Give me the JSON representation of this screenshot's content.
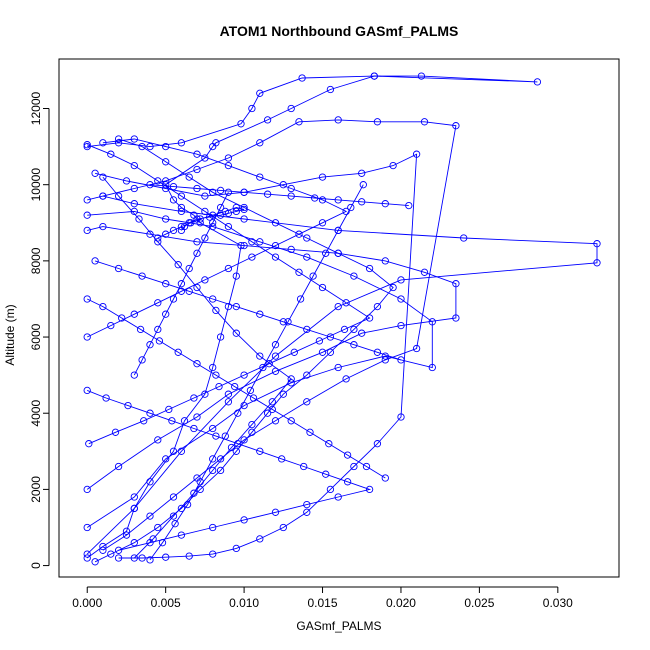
{
  "chart_data": {
    "type": "scatter",
    "title": "ATOM1 Northbound GASmf_PALMS",
    "xlabel": "GASmf_PALMS",
    "ylabel": "Altitude (m)",
    "xlim": [
      -0.0018,
      0.0339
    ],
    "ylim": [
      -300,
      13300
    ],
    "x_ticks": [
      "0.000",
      "0.005",
      "0.010",
      "0.015",
      "0.020",
      "0.025",
      "0.030"
    ],
    "y_ticks": [
      "0",
      "2000",
      "4000",
      "6000",
      "8000",
      "10000",
      "12000"
    ],
    "marker": "open-circle",
    "connected": true,
    "grid": false,
    "series_color": "#0000ff",
    "series": [
      {
        "x": [
          0.0,
          0.001,
          0.0025,
          0.003,
          0.004,
          0.0055,
          0.0062,
          0.0075,
          0.008,
          0.0085,
          0.009,
          0.0095,
          0.0098,
          0.0072,
          0.0068,
          0.006,
          0.0055,
          0.005,
          0.0075,
          0.008,
          0.0082,
          0.0115,
          0.013,
          0.0155,
          0.0183,
          0.0287,
          0.0213,
          0.0183,
          0.0137,
          0.011,
          0.0105,
          0.0098,
          0.006,
          0.004,
          0.002,
          0.0
        ],
        "y": [
          200,
          500,
          900,
          1500,
          2200,
          3000,
          3800,
          4500,
          5200,
          6000,
          6800,
          7600,
          8400,
          9000,
          9200,
          9400,
          9600,
          10000,
          10700,
          11000,
          11100,
          11700,
          12000,
          12500,
          12850,
          12700,
          12850,
          12850,
          12800,
          12400,
          12000,
          11600,
          11100,
          11000,
          11100,
          11000
        ]
      },
      {
        "x": [
          0.0,
          0.003,
          0.006,
          0.009,
          0.012,
          0.016,
          0.02,
          0.0325,
          0.0325,
          0.024,
          0.016,
          0.01,
          0.006,
          0.003,
          0.001,
          0.0
        ],
        "y": [
          300,
          1500,
          3000,
          4300,
          5500,
          6800,
          7500,
          7950,
          8450,
          8600,
          8800,
          9100,
          9300,
          9500,
          9700,
          9600
        ]
      },
      {
        "x": [
          0.0,
          0.003,
          0.005,
          0.008,
          0.01,
          0.013,
          0.016,
          0.019,
          0.022,
          0.022,
          0.02,
          0.017,
          0.014,
          0.011,
          0.008,
          0.005,
          0.003,
          0.0
        ],
        "y": [
          1000,
          1800,
          2800,
          3600,
          4200,
          4800,
          5200,
          5500,
          5200,
          6400,
          7000,
          7600,
          8100,
          8500,
          8900,
          9100,
          9300,
          9200
        ]
      },
      {
        "x": [
          0.0,
          0.002,
          0.0045,
          0.007,
          0.009,
          0.012,
          0.015,
          0.0175,
          0.02,
          0.0235,
          0.0235,
          0.0215,
          0.019,
          0.016,
          0.013,
          0.01,
          0.007,
          0.004,
          0.001,
          0.0
        ],
        "y": [
          2000,
          2600,
          3300,
          3900,
          4500,
          5100,
          5600,
          6100,
          6300,
          6500,
          7400,
          7700,
          8000,
          8200,
          8300,
          8400,
          8500,
          8700,
          8900,
          8800
        ]
      },
      {
        "x": [
          0.001,
          0.0025,
          0.004,
          0.0055,
          0.007,
          0.0085,
          0.01,
          0.012,
          0.014,
          0.0165,
          0.019,
          0.021,
          0.0235,
          0.0215,
          0.0185,
          0.016,
          0.0135,
          0.011,
          0.009,
          0.007,
          0.005,
          0.003,
          0.001
        ],
        "y": [
          400,
          800,
          1300,
          1800,
          2300,
          2800,
          3300,
          3800,
          4300,
          4900,
          5400,
          5700,
          11550,
          11650,
          11650,
          11700,
          11650,
          11100,
          10700,
          10400,
          10100,
          9900,
          9700
        ]
      },
      {
        "x": [
          0.002,
          0.0035,
          0.005,
          0.0065,
          0.008,
          0.0095,
          0.011,
          0.0125,
          0.014,
          0.0155,
          0.017,
          0.0185,
          0.02,
          0.021,
          0.0195,
          0.0175,
          0.015,
          0.0125,
          0.01,
          0.0075,
          0.005,
          0.0025,
          0.0005
        ],
        "y": [
          200,
          200,
          220,
          250,
          300,
          450,
          700,
          1000,
          1400,
          2000,
          2600,
          3200,
          3900,
          10800,
          10500,
          10300,
          10200,
          10000,
          9800,
          9700,
          9900,
          10100,
          10300
        ]
      },
      {
        "x": [
          0.0005,
          0.0015,
          0.003,
          0.0045,
          0.006,
          0.0072,
          0.0085,
          0.0095,
          0.0105,
          0.0115,
          0.0125,
          0.014,
          0.0155,
          0.017,
          0.0185,
          0.0195,
          0.018,
          0.016,
          0.014,
          0.012,
          0.01,
          0.008,
          0.0065,
          0.005,
          0.0035,
          0.002
        ],
        "y": [
          100,
          300,
          600,
          1000,
          1500,
          2000,
          2500,
          3000,
          3500,
          4000,
          4500,
          5000,
          5600,
          6200,
          6800,
          7300,
          7800,
          8200,
          8600,
          9000,
          9400,
          9800,
          10200,
          10600,
          11000,
          11200
        ]
      },
      {
        "x": [
          0.003,
          0.0042,
          0.0055,
          0.0068,
          0.008,
          0.0092,
          0.0105,
          0.0118,
          0.013,
          0.011,
          0.0095,
          0.0082,
          0.007,
          0.0058,
          0.0045,
          0.0033,
          0.002,
          0.001
        ],
        "y": [
          200,
          700,
          1300,
          1900,
          2500,
          3100,
          3700,
          4300,
          4900,
          5500,
          6100,
          6700,
          7300,
          7900,
          8500,
          9100,
          9700,
          10200
        ]
      },
      {
        "x": [
          0.004,
          0.0048,
          0.0056,
          0.0064,
          0.0072,
          0.008,
          0.0088,
          0.0096,
          0.0104,
          0.0112,
          0.012,
          0.0128,
          0.0136,
          0.0144,
          0.0152,
          0.016,
          0.0168,
          0.0176
        ],
        "y": [
          150,
          600,
          1100,
          1600,
          2200,
          2800,
          3400,
          4000,
          4600,
          5200,
          5800,
          6400,
          7000,
          7600,
          8200,
          8800,
          9400,
          10000
        ]
      },
      {
        "x": [
          0.006,
          0.0062,
          0.0065,
          0.007,
          0.0078,
          0.0085,
          0.009,
          0.0095,
          0.01,
          0.0095,
          0.0088,
          0.008,
          0.0072,
          0.0066,
          0.006,
          0.0055,
          0.005,
          0.0045
        ],
        "y": [
          8800,
          8900,
          9000,
          9100,
          9150,
          9200,
          9250,
          9300,
          9350,
          9400,
          9300,
          9200,
          9100,
          9000,
          8900,
          8800,
          8700,
          8600
        ]
      },
      {
        "x": [
          0.0001,
          0.0018,
          0.0036,
          0.0052,
          0.0068,
          0.0084,
          0.01,
          0.0116,
          0.0132,
          0.0148,
          0.0164,
          0.018,
          0.0165,
          0.015,
          0.0135,
          0.012,
          0.0105,
          0.009,
          0.0075,
          0.006,
          0.0045,
          0.003,
          0.0015,
          0.0
        ],
        "y": [
          3200,
          3500,
          3800,
          4100,
          4400,
          4700,
          5000,
          5300,
          5600,
          5900,
          6200,
          6500,
          6900,
          7300,
          7700,
          8100,
          8500,
          8900,
          9300,
          9700,
          10100,
          10500,
          10800,
          11050
        ]
      },
      {
        "x": [
          0.0,
          0.0012,
          0.0026,
          0.004,
          0.0054,
          0.0068,
          0.0082,
          0.0096,
          0.011,
          0.0124,
          0.0138,
          0.0152,
          0.0166,
          0.018,
          0.016,
          0.014,
          0.012,
          0.01,
          0.008,
          0.006,
          0.004,
          0.002
        ],
        "y": [
          4600,
          4400,
          4200,
          4000,
          3800,
          3600,
          3400,
          3200,
          3000,
          2800,
          2600,
          2400,
          2200,
          2000,
          1800,
          1600,
          1400,
          1200,
          1000,
          800,
          600,
          400
        ]
      },
      {
        "x": [
          0.0,
          0.0015,
          0.003,
          0.0045,
          0.006,
          0.0075,
          0.009,
          0.0105,
          0.012,
          0.0135,
          0.015,
          0.0165,
          0.015,
          0.013,
          0.011,
          0.009,
          0.007,
          0.005,
          0.003,
          0.001
        ],
        "y": [
          6000,
          6300,
          6600,
          6900,
          7200,
          7500,
          7800,
          8100,
          8400,
          8700,
          9000,
          9300,
          9600,
          9900,
          10200,
          10500,
          10800,
          11000,
          11200,
          11100
        ]
      },
      {
        "x": [
          0.0,
          0.001,
          0.0022,
          0.0034,
          0.0046,
          0.0058,
          0.007,
          0.0082,
          0.0094,
          0.0106,
          0.0118,
          0.013,
          0.0142,
          0.0154,
          0.0166,
          0.0178,
          0.019
        ],
        "y": [
          7000,
          6800,
          6500,
          6200,
          5900,
          5600,
          5300,
          5000,
          4700,
          4400,
          4100,
          3800,
          3500,
          3200,
          2900,
          2600,
          2300
        ]
      },
      {
        "x": [
          0.003,
          0.0035,
          0.004,
          0.0045,
          0.005,
          0.0055,
          0.006,
          0.0065,
          0.007,
          0.0075,
          0.008,
          0.0085,
          0.009
        ],
        "y": [
          5000,
          5400,
          5800,
          6200,
          6600,
          7000,
          7400,
          7800,
          8200,
          8600,
          9000,
          9400,
          9800
        ]
      },
      {
        "x": [
          0.0005,
          0.002,
          0.0035,
          0.005,
          0.0065,
          0.008,
          0.0095,
          0.011,
          0.0125,
          0.014,
          0.0155,
          0.017,
          0.0185,
          0.02
        ],
        "y": [
          8000,
          7800,
          7600,
          7400,
          7200,
          7000,
          6800,
          6600,
          6400,
          6200,
          6000,
          5800,
          5600,
          5400
        ]
      },
      {
        "x": [
          0.004,
          0.0055,
          0.007,
          0.0085,
          0.01,
          0.0115,
          0.013,
          0.0145,
          0.016,
          0.0175,
          0.019,
          0.0205
        ],
        "y": [
          10000,
          9950,
          9900,
          9850,
          9800,
          9750,
          9700,
          9650,
          9600,
          9550,
          9500,
          9450
        ]
      }
    ]
  }
}
